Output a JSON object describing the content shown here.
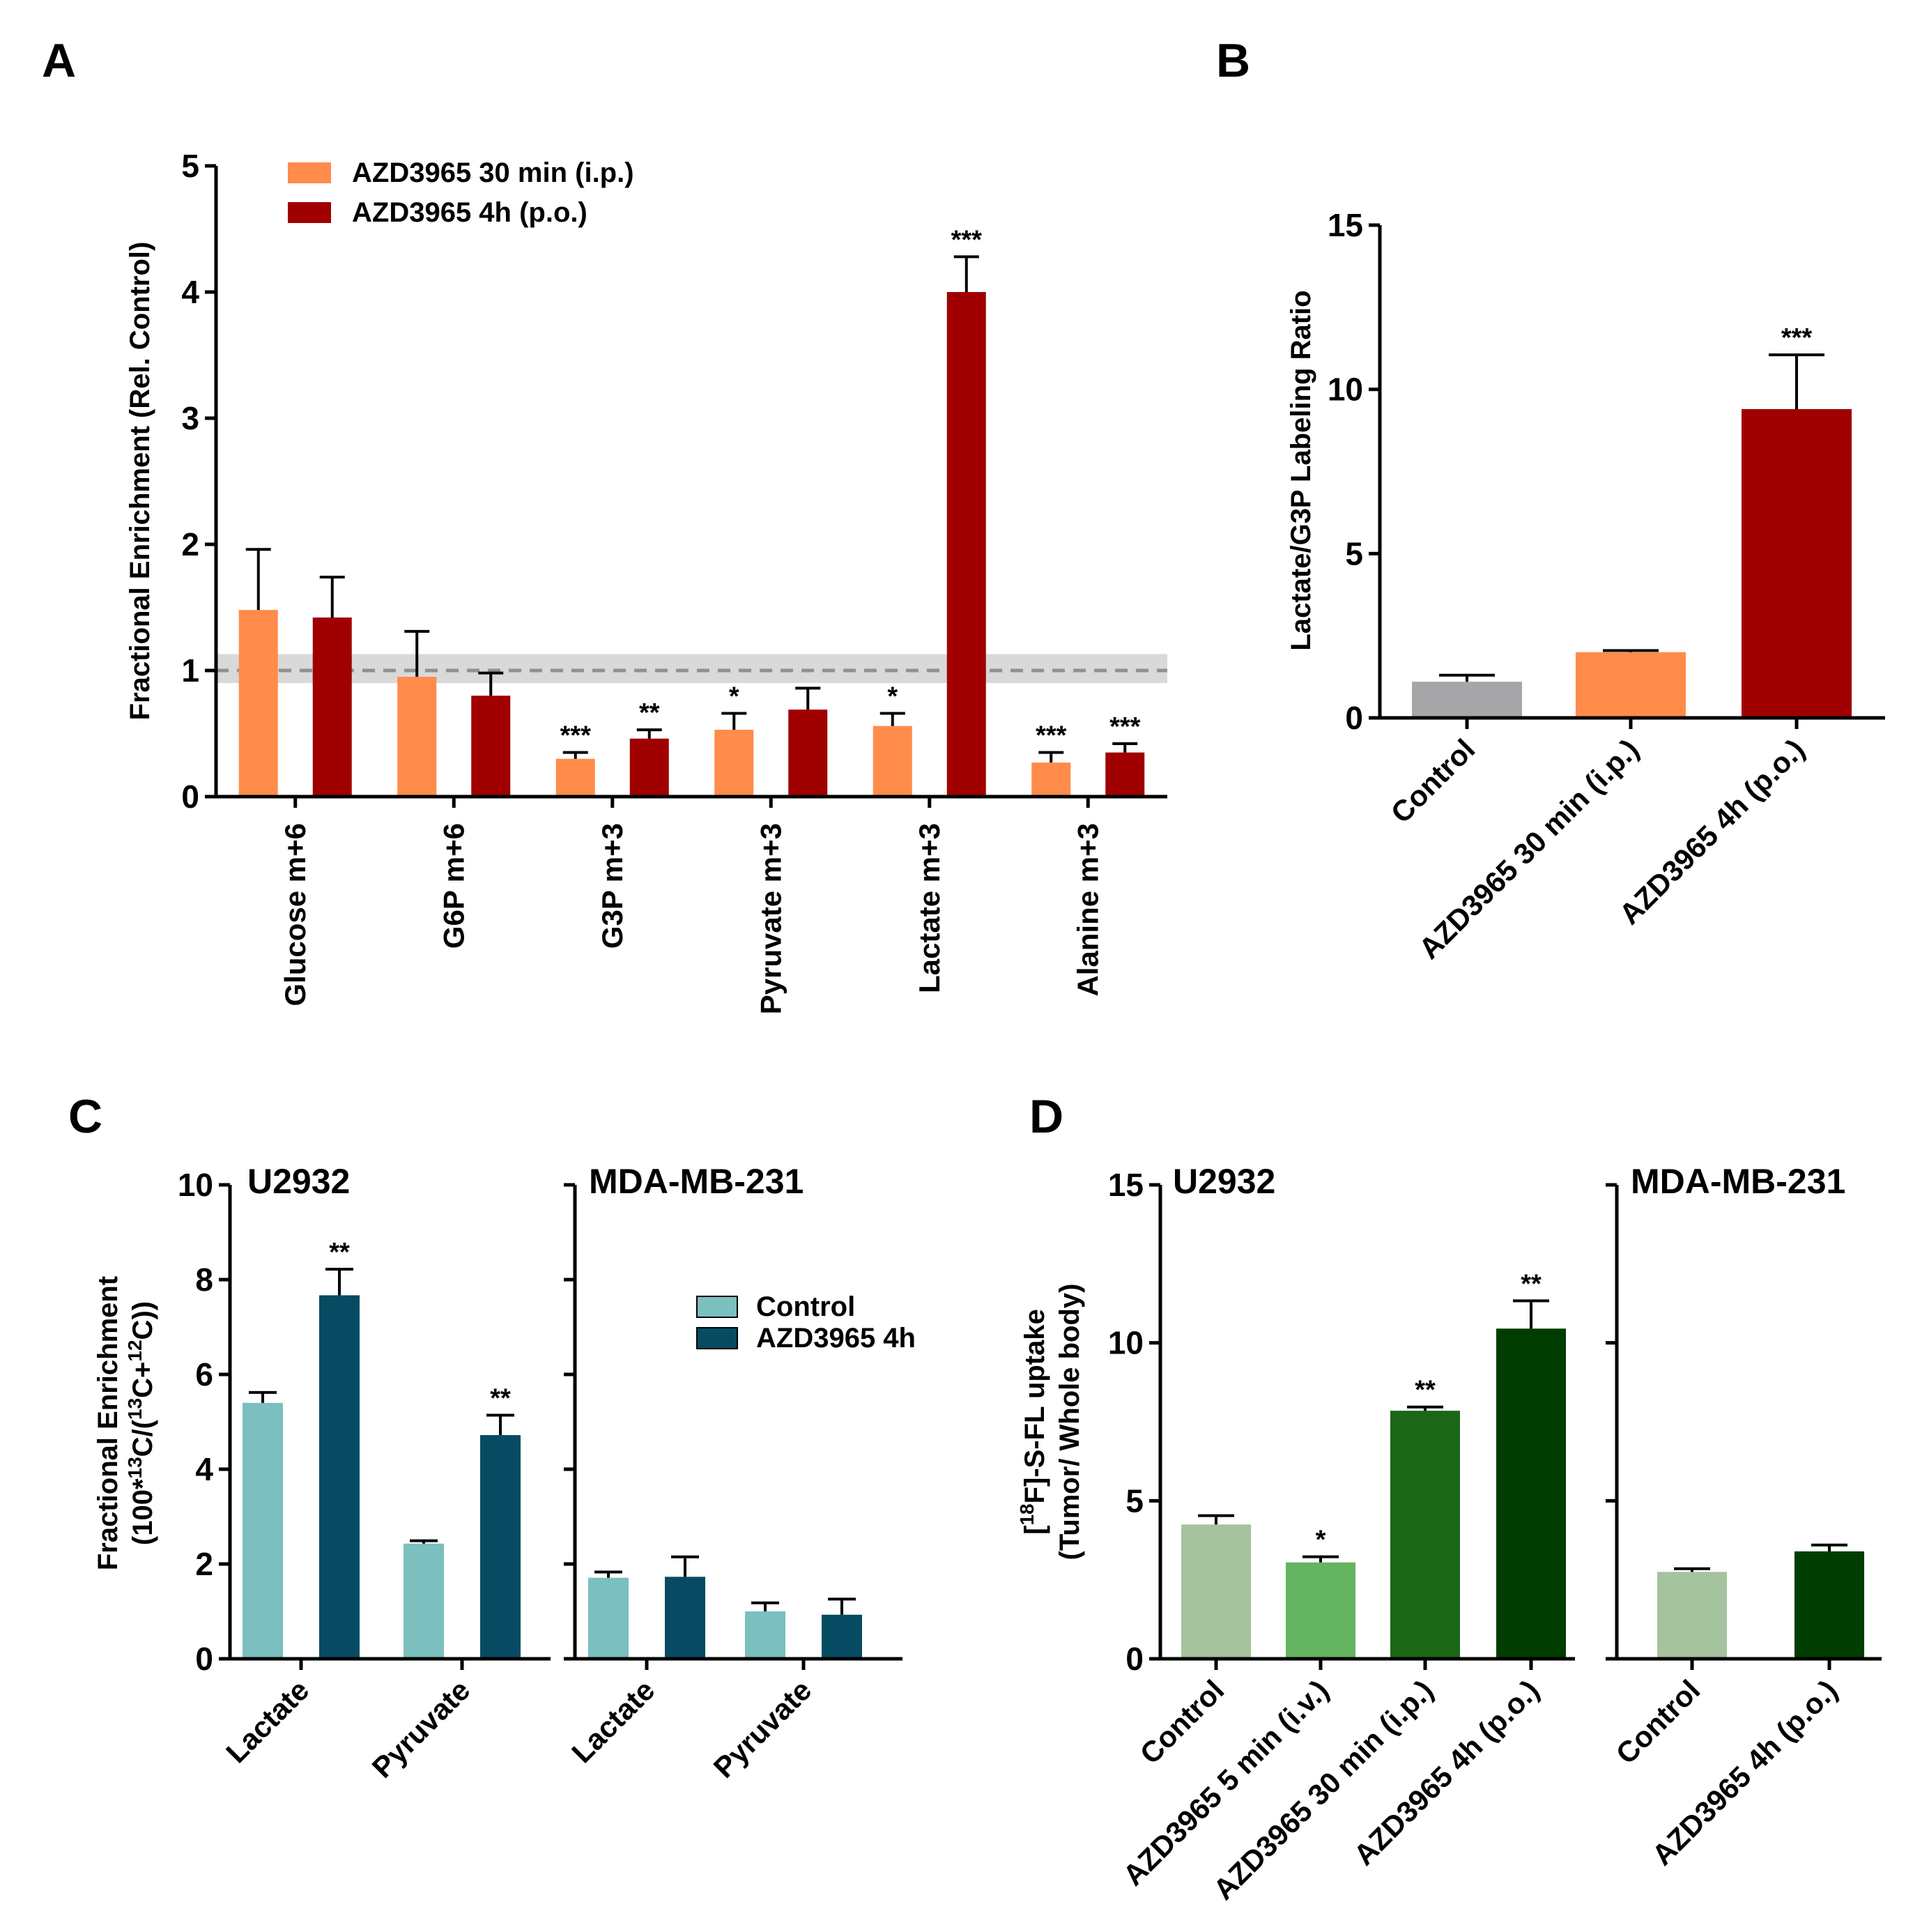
{
  "chart_data": [
    {
      "panel": "A",
      "type": "bar",
      "ylabel": "Fractional Enrichment (Rel. Control)",
      "ylim": [
        0,
        5
      ],
      "yticks": [
        "0",
        "1",
        "2",
        "3",
        "4",
        "5"
      ],
      "categories": [
        "Glucose m+6",
        "G6P m+6",
        "G3P m+3",
        "Pyruvate m+3",
        "Lactate m+3",
        "Alanine m+3"
      ],
      "reference_line": {
        "value": 1.0,
        "band": [
          0.9,
          1.13
        ],
        "color": "#909090",
        "band_color": "#d9d9d9"
      },
      "series": [
        {
          "name": "AZD3965 30 min (i.p.)",
          "color": "#ff8c4a",
          "values": [
            1.48,
            0.95,
            0.3,
            0.53,
            0.56,
            0.27
          ],
          "errors": [
            0.48,
            0.36,
            0.05,
            0.13,
            0.1,
            0.08
          ],
          "sig": [
            "",
            "",
            "***",
            "*",
            "*",
            "***"
          ]
        },
        {
          "name": "AZD3965 4h (p.o.)",
          "color": "#a00000",
          "values": [
            1.42,
            0.8,
            0.46,
            0.69,
            4.0,
            0.35
          ],
          "errors": [
            0.32,
            0.18,
            0.07,
            0.17,
            0.28,
            0.07
          ],
          "sig": [
            "",
            "",
            "**",
            "",
            "***",
            "***"
          ]
        }
      ]
    },
    {
      "panel": "B",
      "type": "bar",
      "ylabel": "Lactate/G3P Labeling Ratio",
      "ylim": [
        0,
        15
      ],
      "yticks": [
        "0",
        "5",
        "10",
        "15"
      ],
      "categories": [
        "Control",
        "AZD3965 30 min (i.p.)",
        "AZD3965 4h (p.o.)"
      ],
      "values": [
        1.1,
        2.0,
        9.4
      ],
      "errors": [
        0.2,
        0.05,
        1.65
      ],
      "colors": [
        "#a6a6a9",
        "#ff8c4a",
        "#a00000"
      ],
      "sig": [
        "",
        "",
        "***"
      ]
    },
    {
      "panel": "C",
      "type": "bar",
      "ylabel_line1": "Fractional Enrichment",
      "ylim": [
        0,
        10
      ],
      "yticks": [
        "0",
        "2",
        "4",
        "6",
        "8",
        "10"
      ],
      "legend": [
        {
          "name": "Control",
          "color": "#7bbfbe"
        },
        {
          "name": "AZD3965 4h",
          "color": "#064b62"
        }
      ],
      "subpanels": [
        {
          "title": "U2932",
          "categories": [
            "Lactate",
            "Pyruvate"
          ],
          "control": [
            5.4,
            2.43
          ],
          "control_err": [
            0.22,
            0.06
          ],
          "treated": [
            7.67,
            4.72
          ],
          "treated_err": [
            0.55,
            0.42
          ],
          "sig": [
            "**",
            "**"
          ]
        },
        {
          "title": "MDA-MB-231",
          "categories": [
            "Lactate",
            "Pyruvate"
          ],
          "control": [
            1.71,
            1.0
          ],
          "control_err": [
            0.12,
            0.18
          ],
          "treated": [
            1.73,
            0.93
          ],
          "treated_err": [
            0.42,
            0.33
          ],
          "sig": [
            "",
            ""
          ]
        }
      ]
    },
    {
      "panel": "D",
      "type": "bar",
      "ylim": [
        0,
        15
      ],
      "yticks": [
        "0",
        "5",
        "10",
        "15"
      ],
      "subpanels": [
        {
          "title": "U2932",
          "categories": [
            "Control",
            "AZD3965 5 min (i.v.)",
            "AZD3965 30 min (i.p.)",
            "AZD3965 4h (p.o.)"
          ],
          "values": [
            4.25,
            3.05,
            7.85,
            10.45
          ],
          "errors": [
            0.28,
            0.18,
            0.12,
            0.88
          ],
          "colors": [
            "#a5c39e",
            "#65b462",
            "#1b6617",
            "#003d00"
          ],
          "sig": [
            "",
            "*",
            "**",
            "**"
          ]
        },
        {
          "title": "MDA-MB-231",
          "categories": [
            "Control",
            "AZD3965 4h (p.o.)"
          ],
          "values": [
            2.75,
            3.4
          ],
          "errors": [
            0.1,
            0.2
          ],
          "colors": [
            "#a5c39e",
            "#003d00"
          ],
          "sig": [
            "",
            ""
          ]
        }
      ]
    }
  ]
}
